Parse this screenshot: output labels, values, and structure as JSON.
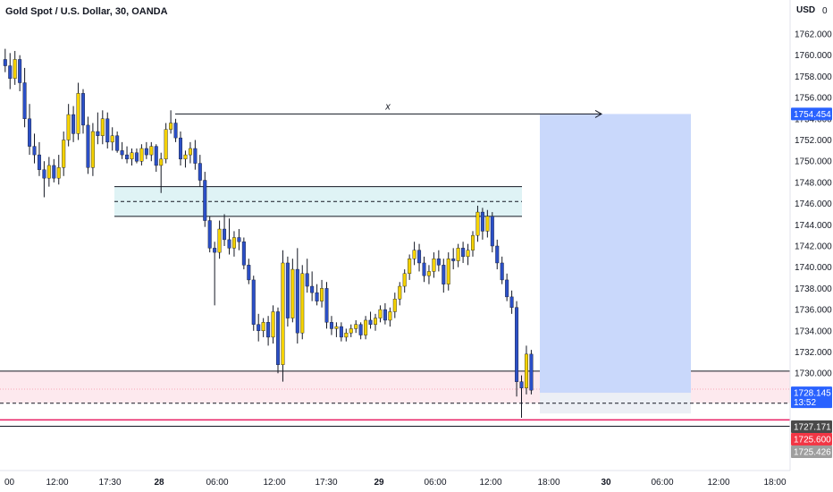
{
  "header": {
    "title": "Gold Spot / U.S. Dollar, 30, OANDA",
    "currency": "USD"
  },
  "colors": {
    "bull": "#f5d200",
    "bear": "#2b4fc7",
    "wick": "#131722",
    "zone_fill": "#dff3f5",
    "target_fill": "#c9d8fb",
    "stop_fill": "#fde9ee",
    "tag_blue": "#2962ff",
    "tag_red": "#f23645",
    "tag_gray": "#9e9e9e",
    "tag_dark": "#4a4a4a"
  },
  "chart_data": {
    "type": "candlestick",
    "title": "Gold Spot / U.S. Dollar, 30, OANDA",
    "ylim": [
      1724.5,
      1764.5
    ],
    "y_ticks": [
      1730,
      1732,
      1734,
      1736,
      1738,
      1740,
      1742,
      1744,
      1746,
      1748,
      1750,
      1752,
      1754,
      1756,
      1758,
      1760,
      1762
    ],
    "y_tick_labels": [
      "1730.000",
      "1732.000",
      "1734.000",
      "1736.000",
      "1738.000",
      "1740.000",
      "1742.000",
      "1744.000",
      "1746.000",
      "1748.000",
      "1750.000",
      "1752.000",
      "1754.000",
      "1756.000",
      "1758.000",
      "1760.000",
      "1762.000"
    ],
    "x_ticks": [
      {
        "label": "00",
        "bold": false
      },
      {
        "label": "12:00",
        "bold": false
      },
      {
        "label": "17:30",
        "bold": false
      },
      {
        "label": "28",
        "bold": true
      },
      {
        "label": "06:00",
        "bold": false
      },
      {
        "label": "12:00",
        "bold": false
      },
      {
        "label": "17:30",
        "bold": false
      },
      {
        "label": "29",
        "bold": true
      },
      {
        "label": "06:00",
        "bold": false
      },
      {
        "label": "12:00",
        "bold": false
      },
      {
        "label": "18:00",
        "bold": false
      },
      {
        "label": "30",
        "bold": true
      },
      {
        "label": "06:00",
        "bold": false
      },
      {
        "label": "12:00",
        "bold": false
      },
      {
        "label": "18:00",
        "bold": false
      }
    ],
    "candles": [
      {
        "o": 1759.6,
        "h": 1760.6,
        "l": 1758.4,
        "c": 1759.0
      },
      {
        "o": 1759.0,
        "h": 1760.2,
        "l": 1756.8,
        "c": 1757.8
      },
      {
        "o": 1757.8,
        "h": 1760.4,
        "l": 1757.2,
        "c": 1759.6
      },
      {
        "o": 1759.6,
        "h": 1760.0,
        "l": 1756.6,
        "c": 1757.4
      },
      {
        "o": 1757.4,
        "h": 1758.8,
        "l": 1753.2,
        "c": 1754.0
      },
      {
        "o": 1754.0,
        "h": 1755.4,
        "l": 1750.6,
        "c": 1751.4
      },
      {
        "o": 1751.4,
        "h": 1752.6,
        "l": 1749.8,
        "c": 1750.6
      },
      {
        "o": 1750.6,
        "h": 1751.8,
        "l": 1748.6,
        "c": 1749.2
      },
      {
        "o": 1749.2,
        "h": 1750.0,
        "l": 1746.6,
        "c": 1748.4
      },
      {
        "o": 1748.4,
        "h": 1750.4,
        "l": 1747.6,
        "c": 1749.6
      },
      {
        "o": 1749.6,
        "h": 1750.2,
        "l": 1748.0,
        "c": 1748.4
      },
      {
        "o": 1748.4,
        "h": 1750.6,
        "l": 1747.8,
        "c": 1749.4
      },
      {
        "o": 1749.4,
        "h": 1752.8,
        "l": 1748.6,
        "c": 1752.0
      },
      {
        "o": 1752.0,
        "h": 1755.4,
        "l": 1751.4,
        "c": 1754.4
      },
      {
        "o": 1754.4,
        "h": 1755.2,
        "l": 1751.8,
        "c": 1752.6
      },
      {
        "o": 1752.6,
        "h": 1757.4,
        "l": 1752.0,
        "c": 1756.4
      },
      {
        "o": 1756.4,
        "h": 1756.8,
        "l": 1752.6,
        "c": 1753.4
      },
      {
        "o": 1753.4,
        "h": 1754.2,
        "l": 1748.8,
        "c": 1749.4
      },
      {
        "o": 1749.4,
        "h": 1753.6,
        "l": 1748.6,
        "c": 1752.8
      },
      {
        "o": 1752.8,
        "h": 1754.6,
        "l": 1751.6,
        "c": 1752.4
      },
      {
        "o": 1752.4,
        "h": 1754.8,
        "l": 1751.6,
        "c": 1754.0
      },
      {
        "o": 1754.0,
        "h": 1754.6,
        "l": 1751.2,
        "c": 1751.8
      },
      {
        "o": 1751.8,
        "h": 1753.2,
        "l": 1751.0,
        "c": 1752.4
      },
      {
        "o": 1752.4,
        "h": 1752.8,
        "l": 1750.8,
        "c": 1751.0
      },
      {
        "o": 1751.0,
        "h": 1751.8,
        "l": 1750.2,
        "c": 1750.6
      },
      {
        "o": 1750.6,
        "h": 1751.4,
        "l": 1749.8,
        "c": 1750.2
      },
      {
        "o": 1750.2,
        "h": 1751.2,
        "l": 1749.6,
        "c": 1750.8
      },
      {
        "o": 1750.8,
        "h": 1751.2,
        "l": 1749.8,
        "c": 1750.0
      },
      {
        "o": 1750.0,
        "h": 1751.6,
        "l": 1749.6,
        "c": 1751.2
      },
      {
        "o": 1751.2,
        "h": 1751.8,
        "l": 1750.2,
        "c": 1750.6
      },
      {
        "o": 1750.6,
        "h": 1751.8,
        "l": 1750.0,
        "c": 1751.4
      },
      {
        "o": 1751.4,
        "h": 1751.6,
        "l": 1749.0,
        "c": 1749.6
      },
      {
        "o": 1749.6,
        "h": 1750.8,
        "l": 1747.0,
        "c": 1750.2
      },
      {
        "o": 1750.2,
        "h": 1753.6,
        "l": 1749.8,
        "c": 1753.0
      },
      {
        "o": 1753.0,
        "h": 1754.8,
        "l": 1752.6,
        "c": 1753.6
      },
      {
        "o": 1753.6,
        "h": 1754.0,
        "l": 1751.8,
        "c": 1752.2
      },
      {
        "o": 1752.2,
        "h": 1752.8,
        "l": 1749.6,
        "c": 1750.2
      },
      {
        "o": 1750.2,
        "h": 1751.0,
        "l": 1749.4,
        "c": 1750.6
      },
      {
        "o": 1750.6,
        "h": 1751.8,
        "l": 1749.8,
        "c": 1751.2
      },
      {
        "o": 1751.2,
        "h": 1752.0,
        "l": 1749.2,
        "c": 1749.8
      },
      {
        "o": 1749.8,
        "h": 1750.6,
        "l": 1747.6,
        "c": 1748.2
      },
      {
        "o": 1748.2,
        "h": 1749.0,
        "l": 1743.8,
        "c": 1744.4
      },
      {
        "o": 1744.4,
        "h": 1744.8,
        "l": 1741.4,
        "c": 1741.8
      },
      {
        "o": 1741.8,
        "h": 1742.4,
        "l": 1736.4,
        "c": 1741.4
      },
      {
        "o": 1741.4,
        "h": 1744.4,
        "l": 1740.8,
        "c": 1743.6
      },
      {
        "o": 1743.6,
        "h": 1745.0,
        "l": 1742.0,
        "c": 1742.6
      },
      {
        "o": 1742.6,
        "h": 1744.6,
        "l": 1741.2,
        "c": 1741.8
      },
      {
        "o": 1741.8,
        "h": 1743.4,
        "l": 1741.0,
        "c": 1742.8
      },
      {
        "o": 1742.8,
        "h": 1743.6,
        "l": 1741.6,
        "c": 1742.4
      },
      {
        "o": 1742.4,
        "h": 1742.8,
        "l": 1739.8,
        "c": 1740.2
      },
      {
        "o": 1740.2,
        "h": 1740.8,
        "l": 1738.4,
        "c": 1738.8
      },
      {
        "o": 1738.8,
        "h": 1739.2,
        "l": 1734.0,
        "c": 1734.6
      },
      {
        "o": 1734.6,
        "h": 1735.6,
        "l": 1733.0,
        "c": 1734.0
      },
      {
        "o": 1734.0,
        "h": 1735.2,
        "l": 1733.4,
        "c": 1734.8
      },
      {
        "o": 1734.8,
        "h": 1735.4,
        "l": 1732.6,
        "c": 1733.4
      },
      {
        "o": 1733.4,
        "h": 1736.4,
        "l": 1732.8,
        "c": 1735.8
      },
      {
        "o": 1735.8,
        "h": 1736.2,
        "l": 1730.0,
        "c": 1730.8
      },
      {
        "o": 1730.8,
        "h": 1741.6,
        "l": 1729.2,
        "c": 1740.4
      },
      {
        "o": 1740.4,
        "h": 1741.0,
        "l": 1734.4,
        "c": 1735.2
      },
      {
        "o": 1735.2,
        "h": 1740.8,
        "l": 1734.8,
        "c": 1739.8
      },
      {
        "o": 1739.8,
        "h": 1741.8,
        "l": 1732.8,
        "c": 1733.8
      },
      {
        "o": 1733.8,
        "h": 1740.2,
        "l": 1733.2,
        "c": 1739.4
      },
      {
        "o": 1739.4,
        "h": 1740.8,
        "l": 1737.6,
        "c": 1738.2
      },
      {
        "o": 1738.2,
        "h": 1739.6,
        "l": 1736.8,
        "c": 1737.6
      },
      {
        "o": 1737.6,
        "h": 1738.4,
        "l": 1736.4,
        "c": 1736.8
      },
      {
        "o": 1736.8,
        "h": 1738.8,
        "l": 1736.2,
        "c": 1738.0
      },
      {
        "o": 1738.0,
        "h": 1738.6,
        "l": 1734.2,
        "c": 1734.8
      },
      {
        "o": 1734.8,
        "h": 1735.4,
        "l": 1733.6,
        "c": 1734.2
      },
      {
        "o": 1734.2,
        "h": 1734.8,
        "l": 1733.4,
        "c": 1734.4
      },
      {
        "o": 1734.4,
        "h": 1734.8,
        "l": 1733.0,
        "c": 1733.4
      },
      {
        "o": 1733.4,
        "h": 1734.2,
        "l": 1733.0,
        "c": 1733.8
      },
      {
        "o": 1733.8,
        "h": 1734.6,
        "l": 1733.4,
        "c": 1734.2
      },
      {
        "o": 1734.2,
        "h": 1735.0,
        "l": 1733.8,
        "c": 1734.6
      },
      {
        "o": 1734.6,
        "h": 1734.8,
        "l": 1733.2,
        "c": 1733.6
      },
      {
        "o": 1733.6,
        "h": 1735.4,
        "l": 1733.2,
        "c": 1735.0
      },
      {
        "o": 1735.0,
        "h": 1735.8,
        "l": 1734.2,
        "c": 1734.6
      },
      {
        "o": 1734.6,
        "h": 1735.6,
        "l": 1734.0,
        "c": 1735.2
      },
      {
        "o": 1735.2,
        "h": 1736.4,
        "l": 1734.8,
        "c": 1736.0
      },
      {
        "o": 1736.0,
        "h": 1736.6,
        "l": 1734.6,
        "c": 1735.0
      },
      {
        "o": 1735.0,
        "h": 1736.2,
        "l": 1734.4,
        "c": 1735.8
      },
      {
        "o": 1735.8,
        "h": 1737.6,
        "l": 1735.2,
        "c": 1737.0
      },
      {
        "o": 1737.0,
        "h": 1738.6,
        "l": 1736.4,
        "c": 1738.2
      },
      {
        "o": 1738.2,
        "h": 1739.8,
        "l": 1737.6,
        "c": 1739.4
      },
      {
        "o": 1739.4,
        "h": 1741.2,
        "l": 1738.8,
        "c": 1740.8
      },
      {
        "o": 1740.8,
        "h": 1742.4,
        "l": 1740.2,
        "c": 1741.6
      },
      {
        "o": 1741.6,
        "h": 1742.2,
        "l": 1739.6,
        "c": 1740.4
      },
      {
        "o": 1740.4,
        "h": 1741.0,
        "l": 1738.6,
        "c": 1739.2
      },
      {
        "o": 1739.2,
        "h": 1740.2,
        "l": 1738.4,
        "c": 1739.6
      },
      {
        "o": 1739.6,
        "h": 1741.4,
        "l": 1739.0,
        "c": 1740.8
      },
      {
        "o": 1740.8,
        "h": 1741.6,
        "l": 1739.6,
        "c": 1740.2
      },
      {
        "o": 1740.2,
        "h": 1740.8,
        "l": 1737.6,
        "c": 1738.4
      },
      {
        "o": 1738.4,
        "h": 1741.4,
        "l": 1737.8,
        "c": 1740.8
      },
      {
        "o": 1740.8,
        "h": 1741.8,
        "l": 1739.8,
        "c": 1740.6
      },
      {
        "o": 1740.6,
        "h": 1742.2,
        "l": 1740.0,
        "c": 1741.8
      },
      {
        "o": 1741.8,
        "h": 1742.4,
        "l": 1740.4,
        "c": 1741.0
      },
      {
        "o": 1741.0,
        "h": 1742.2,
        "l": 1740.2,
        "c": 1741.6
      },
      {
        "o": 1741.6,
        "h": 1743.4,
        "l": 1741.0,
        "c": 1743.0
      },
      {
        "o": 1743.0,
        "h": 1745.8,
        "l": 1742.4,
        "c": 1745.2
      },
      {
        "o": 1745.2,
        "h": 1745.6,
        "l": 1742.6,
        "c": 1743.4
      },
      {
        "o": 1743.4,
        "h": 1745.4,
        "l": 1742.8,
        "c": 1744.8
      },
      {
        "o": 1744.8,
        "h": 1745.2,
        "l": 1741.4,
        "c": 1742.0
      },
      {
        "o": 1742.0,
        "h": 1742.6,
        "l": 1739.8,
        "c": 1740.4
      },
      {
        "o": 1740.4,
        "h": 1741.0,
        "l": 1738.4,
        "c": 1738.8
      },
      {
        "o": 1738.8,
        "h": 1739.4,
        "l": 1736.8,
        "c": 1737.2
      },
      {
        "o": 1737.2,
        "h": 1737.8,
        "l": 1735.6,
        "c": 1736.2
      },
      {
        "o": 1736.2,
        "h": 1736.8,
        "l": 1727.8,
        "c": 1729.2
      },
      {
        "o": 1729.2,
        "h": 1729.8,
        "l": 1725.8,
        "c": 1728.6
      },
      {
        "o": 1728.6,
        "h": 1732.6,
        "l": 1728.0,
        "c": 1731.8
      },
      {
        "o": 1731.8,
        "h": 1732.2,
        "l": 1728.0,
        "c": 1728.4
      }
    ],
    "annotations": {
      "resistance_zone": {
        "top": 1747.6,
        "mid": 1746.2,
        "bottom": 1744.8
      },
      "arrow_line": {
        "y": 1754.454,
        "label": "x"
      },
      "target_box": {
        "top": 1754.454,
        "bottom": 1728.145
      },
      "stop_box": {
        "top": 1730.2,
        "bottom": 1727.171
      },
      "support_lines": [
        1725.6,
        1725.0
      ],
      "entry_dashed": 1727.171
    },
    "price_tags": [
      {
        "value": 1754.454,
        "label": "1754.454",
        "color": "tag_blue"
      },
      {
        "value": 1728.145,
        "label": "1728.145",
        "sub": "13:52",
        "color": "tag_blue"
      },
      {
        "value": 1727.171,
        "label": "1727.171",
        "color": "tag_dark"
      },
      {
        "value": 1725.6,
        "label": "1725.600",
        "color": "tag_red"
      },
      {
        "value": 1725.426,
        "label": "1725.426",
        "color": "tag_gray"
      }
    ],
    "top_axis_partial_label": "17",
    "top_axis_partial_suffix": "0"
  }
}
